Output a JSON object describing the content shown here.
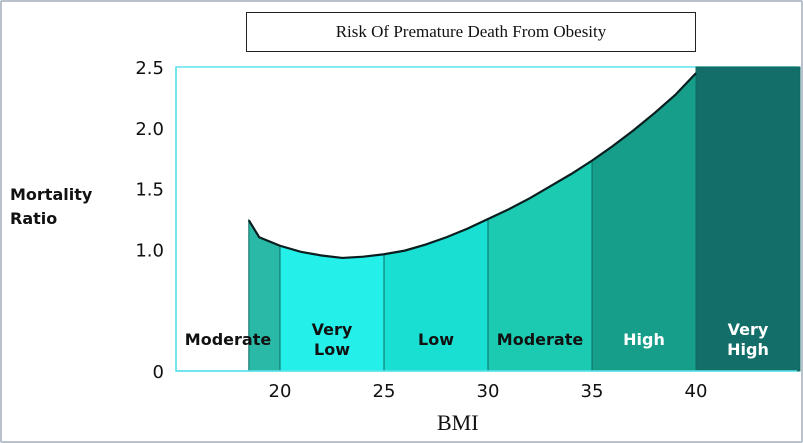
{
  "chart_data": {
    "type": "area",
    "title": "Risk Of Premature Death From Obesity",
    "xlabel": "BMI",
    "ylabel": [
      "Mortality",
      "Ratio"
    ],
    "xlim": [
      18.5,
      45
    ],
    "ylim": [
      0,
      2.5
    ],
    "x_ticks": [
      "20",
      "25",
      "30",
      "35",
      "40"
    ],
    "y_ticks": [
      "0",
      "1.0",
      "1.5",
      "2.0",
      "2.5"
    ],
    "curve": {
      "x": [
        18.5,
        19,
        20,
        21,
        22,
        23,
        24,
        25,
        26,
        27,
        28,
        29,
        30,
        31,
        32,
        33,
        34,
        35,
        36,
        37,
        38,
        39,
        40
      ],
      "y": [
        1.24,
        1.1,
        1.03,
        0.98,
        0.95,
        0.93,
        0.94,
        0.96,
        0.99,
        1.04,
        1.1,
        1.17,
        1.25,
        1.33,
        1.42,
        1.52,
        1.62,
        1.73,
        1.85,
        1.98,
        2.12,
        2.27,
        2.45
      ]
    },
    "zones": [
      {
        "label": [
          "Moderate"
        ],
        "from": 18.5,
        "to": 20,
        "color": "#2ab9a6",
        "text_color": "#111111"
      },
      {
        "label": [
          "Very",
          "Low"
        ],
        "from": 20,
        "to": 25,
        "color": "#24efe8",
        "text_color": "#111111"
      },
      {
        "label": [
          "Low"
        ],
        "from": 25,
        "to": 30,
        "color": "#18dfd2",
        "text_color": "#111111"
      },
      {
        "label": [
          "Moderate"
        ],
        "from": 30,
        "to": 35,
        "color": "#1bcab0",
        "text_color": "#111111"
      },
      {
        "label": [
          "High"
        ],
        "from": 35,
        "to": 40,
        "color": "#179e8a",
        "text_color": "#ffffff",
        "top": 2.45
      },
      {
        "label": [
          "Very",
          "High"
        ],
        "from": 40,
        "to": 45,
        "color": "#136e6a",
        "text_color": "#ffffff",
        "top": 2.5
      }
    ],
    "grid": false,
    "legend": "none"
  }
}
